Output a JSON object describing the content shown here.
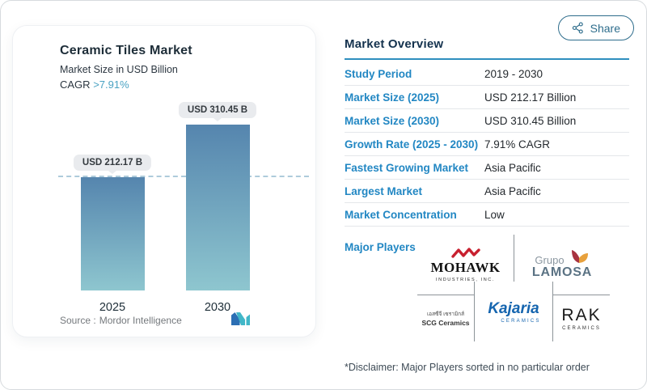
{
  "page": {
    "share_button": {
      "label": "Share"
    },
    "disclaimer": "*Disclaimer: Major Players sorted in no particular order"
  },
  "chart_card": {
    "title": "Ceramic Tiles Market",
    "subtitle": "Market Size in USD Billion",
    "cagr_label": "CAGR",
    "cagr_value": ">7.91%",
    "source_label": "Source :",
    "source_value": "Mordor Intelligence",
    "logo": "mordor-intelligence-logo"
  },
  "chart_data": {
    "type": "bar",
    "categories": [
      "2025",
      "2030"
    ],
    "values": [
      212.17,
      310.45
    ],
    "value_labels": [
      "USD 212.17 B",
      "USD 310.45 B"
    ],
    "title": "Ceramic Tiles Market",
    "ylabel": "Market Size in USD Billion",
    "unit": "USD Billion",
    "cagr_percent": 7.91,
    "reference_line": {
      "y": 212.17,
      "style": "dashed"
    },
    "grid": "off",
    "legend": "none",
    "bar_gradient_top": "#5585ae",
    "bar_gradient_bottom": "#8ec6cf"
  },
  "overview": {
    "heading": "Market Overview",
    "rows": [
      {
        "label": "Study Period",
        "value": "2019 - 2030"
      },
      {
        "label": "Market Size (2025)",
        "value": "USD 212.17 Billion"
      },
      {
        "label": "Market Size (2030)",
        "value": "USD 310.45 Billion"
      },
      {
        "label": "Growth Rate (2025 - 2030)",
        "value": "7.91% CAGR"
      },
      {
        "label": "Fastest Growing Market",
        "value": "Asia Pacific"
      },
      {
        "label": "Largest Market",
        "value": "Asia Pacific"
      },
      {
        "label": "Market Concentration",
        "value": "Low"
      }
    ],
    "major_players_label": "Major Players",
    "players": {
      "mohawk": {
        "name": "MOHAWK",
        "sub": "INDUSTRIES, INC."
      },
      "lamosa": {
        "top": "Grupo",
        "name": "LAMOSA"
      },
      "scg": {
        "thai": "เอสซีจี เซรามิกส์",
        "name": "SCG Ceramics"
      },
      "kajaria": {
        "name": "Kajaria",
        "sub": "CERAMICS"
      },
      "rak": {
        "name": "RAK",
        "sub": "CERAMICS"
      }
    }
  },
  "colors": {
    "accent_blue": "#2287c3",
    "heading_navy": "#14324e",
    "cagr_teal": "#4ba3c3",
    "bar_top": "#5585ae",
    "bar_bottom": "#8ec6cf",
    "dashed_line": "#aecbdb",
    "badge_bg": "#e9ebee",
    "share_outline": "#2e6d8c",
    "mohawk_red": "#c8202f",
    "kajaria_blue": "#1565af",
    "lamosa_steel": "#5b7384",
    "lamosa_red": "#a83340",
    "lamosa_amber": "#e8a13c",
    "mordor_blue": "#2c6fb4",
    "mordor_teal": "#41b7c8"
  }
}
